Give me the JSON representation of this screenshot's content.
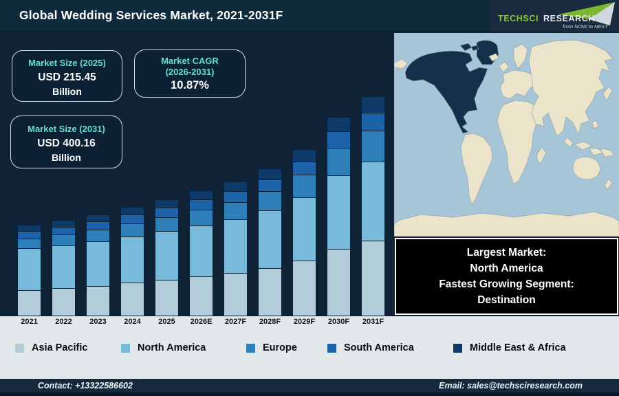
{
  "header": {
    "title": "Global Wedding Services Market, 2021-2031F",
    "logo": {
      "brand_primary": "TECHSCI",
      "brand_secondary": "RESEARCH",
      "tagline": "from NOW to NEXT",
      "brand_green": "#8cc63f",
      "brand_silver": "#e4eaef"
    }
  },
  "stats": {
    "market_size_2025": {
      "label": "Market Size (2025)",
      "value": "USD 215.45",
      "unit": "Billion"
    },
    "cagr": {
      "label_line1": "Market CAGR",
      "label_line2": "(2026-2031)",
      "value": "10.87%"
    },
    "market_size_2031": {
      "label": "Market Size (2031)",
      "value": "USD 400.16",
      "unit": "Billion"
    }
  },
  "chart_data": {
    "type": "bar",
    "stacked": true,
    "title": "Global Wedding Services Market, 2021-2031F",
    "unit": "USD Billion",
    "categories": [
      "2021",
      "2022",
      "2023",
      "2024",
      "2025",
      "2026E",
      "2027F",
      "2028F",
      "2029F",
      "2030F",
      "2031F"
    ],
    "series": [
      {
        "name": "Asia Pacific",
        "color": "#b3ccd9",
        "values": [
          47.5,
          50.9,
          54.9,
          60.0,
          65.5,
          71.6,
          78.1,
          87.1,
          100.2,
          121.4,
          136.1
        ]
      },
      {
        "name": "North America",
        "color": "#79b9da",
        "values": [
          75.6,
          77.8,
          80.5,
          84.6,
          88.5,
          92.9,
          97.1,
          104.0,
          114.7,
          133.3,
          143.3
        ]
      },
      {
        "name": "Europe",
        "color": "#2e7eb8",
        "values": [
          19.2,
          20.6,
          22.4,
          24.6,
          26.9,
          29.6,
          32.4,
          36.2,
          41.9,
          50.9,
          57.2
        ]
      },
      {
        "name": "South America",
        "color": "#1d63a9",
        "values": [
          14.6,
          15.2,
          16.0,
          17.1,
          18.2,
          19.4,
          20.7,
          22.5,
          25.3,
          30.0,
          32.8
        ]
      },
      {
        "name": "Middle East & Africa",
        "color": "#0d3a69",
        "values": [
          12.7,
          13.4,
          14.2,
          15.2,
          16.3,
          17.6,
          18.8,
          20.7,
          23.4,
          27.9,
          30.8
        ]
      }
    ],
    "totals": [
      169.5,
      178.0,
      188.0,
      201.5,
      215.45,
      231.0,
      247.0,
      270.5,
      305.5,
      363.5,
      400.16
    ],
    "ylim": [
      0,
      410
    ],
    "grid": false,
    "legend_position": "bottom"
  },
  "map": {
    "highlighted_region": "North America",
    "colors": {
      "ocean": "#a6c5d7",
      "land": "#ece4ca",
      "highlight": "#14304b",
      "outline": "#8fa6ad"
    }
  },
  "info_box": {
    "line1": "Largest Market:",
    "line2": "North America",
    "line3": "Fastest Growing Segment:",
    "line4": "Destination"
  },
  "footer": {
    "contact": "Contact: +13322586602",
    "email": "Email: sales@techsciresearch.com"
  }
}
